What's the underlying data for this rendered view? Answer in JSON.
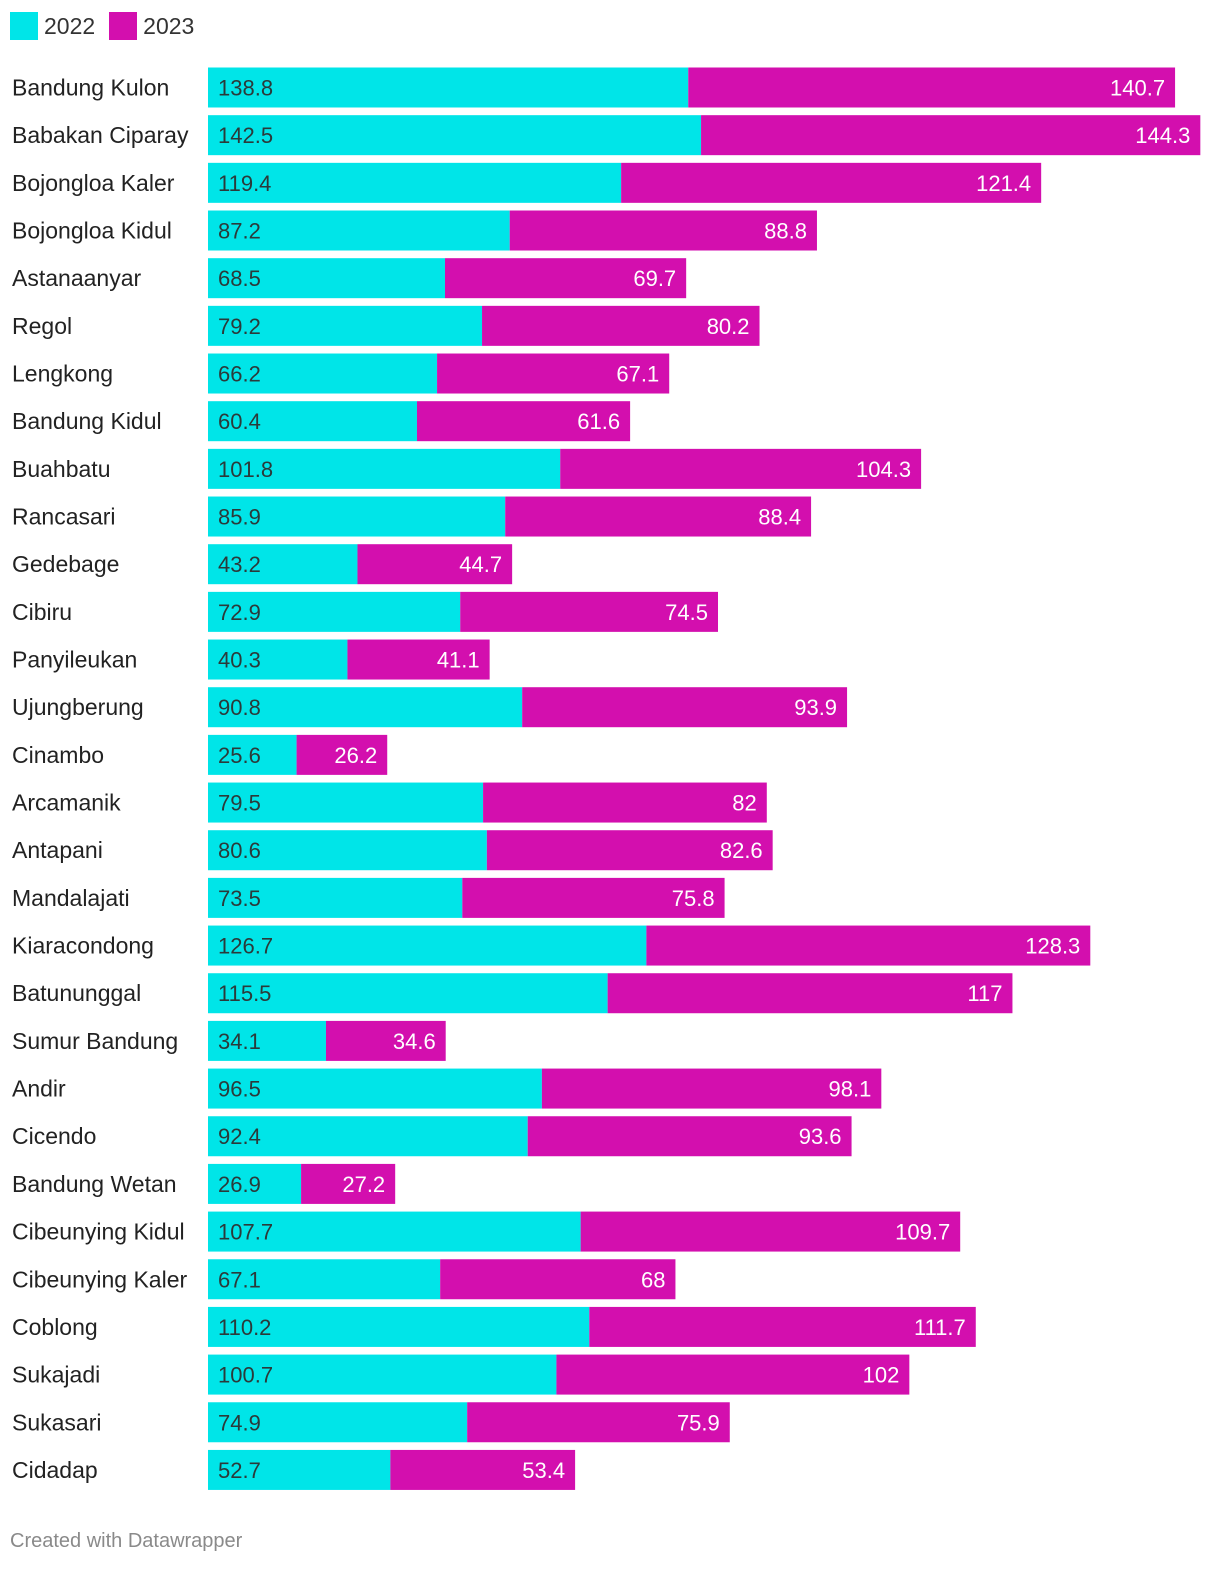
{
  "colors": {
    "series_2022": "#00e5e8",
    "series_2023": "#d30fae"
  },
  "footer": "Created with Datawrapper",
  "chart_data": {
    "type": "bar",
    "orientation": "horizontal",
    "stacked": true,
    "legend_position": "top-left",
    "grid": false,
    "categories": [
      "Bandung Kulon",
      "Babakan Ciparay",
      "Bojongloa Kaler",
      "Bojongloa Kidul",
      "Astanaanyar",
      "Regol",
      "Lengkong",
      "Bandung Kidul",
      "Buahbatu",
      "Rancasari",
      "Gedebage",
      "Cibiru",
      "Panyileukan",
      "Ujungberung",
      "Cinambo",
      "Arcamanik",
      "Antapani",
      "Mandalajati",
      "Kiaracondong",
      "Batununggal",
      "Sumur Bandung",
      "Andir",
      "Cicendo",
      "Bandung Wetan",
      "Cibeunying Kidul",
      "Cibeunying Kaler",
      "Coblong",
      "Sukajadi",
      "Sukasari",
      "Cidadap"
    ],
    "series": [
      {
        "name": "2022",
        "values": [
          138.8,
          142.5,
          119.4,
          87.2,
          68.5,
          79.2,
          66.2,
          60.4,
          101.8,
          85.9,
          43.2,
          72.9,
          40.3,
          90.8,
          25.6,
          79.5,
          80.6,
          73.5,
          126.7,
          115.5,
          34.1,
          96.5,
          92.4,
          26.9,
          107.7,
          67.1,
          110.2,
          100.7,
          74.9,
          52.7
        ]
      },
      {
        "name": "2023",
        "values": [
          140.7,
          144.3,
          121.4,
          88.8,
          69.7,
          80.2,
          67.1,
          61.6,
          104.3,
          88.4,
          44.7,
          74.5,
          41.1,
          93.9,
          26.2,
          82,
          82.6,
          75.8,
          128.3,
          117,
          34.6,
          98.1,
          93.6,
          27.2,
          109.7,
          68,
          111.7,
          102,
          75.9,
          53.4
        ]
      }
    ],
    "value_labels": {
      "2022": [
        "138.8",
        "142.5",
        "119.4",
        "87.2",
        "68.5",
        "79.2",
        "66.2",
        "60.4",
        "101.8",
        "85.9",
        "43.2",
        "72.9",
        "40.3",
        "90.8",
        "25.6",
        "79.5",
        "80.6",
        "73.5",
        "126.7",
        "115.5",
        "34.1",
        "96.5",
        "92.4",
        "26.9",
        "107.7",
        "67.1",
        "110.2",
        "100.7",
        "74.9",
        "52.7"
      ],
      "2023": [
        "140.7",
        "144.3",
        "121.4",
        "88.8",
        "69.7",
        "80.2",
        "67.1",
        "61.6",
        "104.3",
        "88.4",
        "44.7",
        "74.5",
        "41.1",
        "93.9",
        "26.2",
        "82",
        "82.6",
        "75.8",
        "128.3",
        "117",
        "34.6",
        "98.1",
        "93.6",
        "27.2",
        "109.7",
        "68",
        "111.7",
        "102",
        "75.9",
        "53.4"
      ]
    }
  }
}
